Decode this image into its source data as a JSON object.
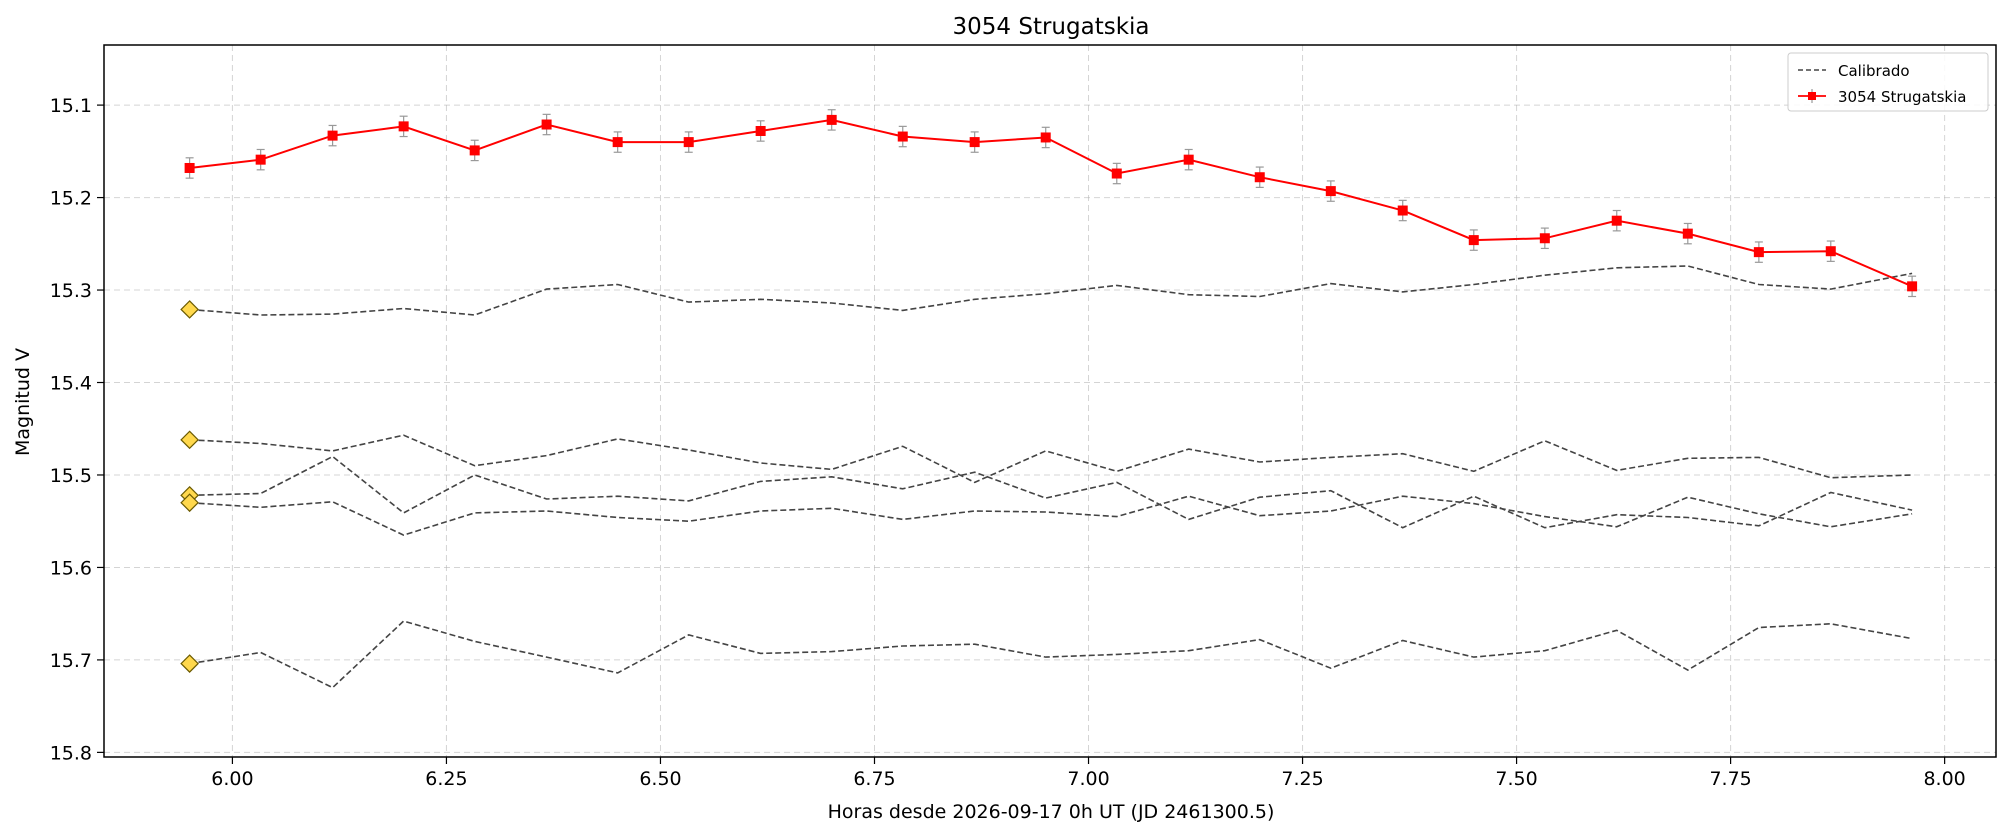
{
  "chart_data": {
    "type": "line",
    "title": "3054 Strugatskia",
    "xlabel": "Horas desde 2026-09-17 0h UT (JD 2461300.5)",
    "ylabel": "Magnitud V",
    "xlim": [
      5.85,
      8.06
    ],
    "ylim": [
      15.805,
      15.035
    ],
    "y_inverted": true,
    "grid": true,
    "legend_position": "top-right",
    "xticks": [
      "6.00",
      "6.25",
      "6.50",
      "6.75",
      "7.00",
      "7.25",
      "7.50",
      "7.75",
      "8.00"
    ],
    "xtick_values": [
      6.0,
      6.25,
      6.5,
      6.75,
      7.0,
      7.25,
      7.5,
      7.75,
      8.0
    ],
    "yticks": [
      "15.1",
      "15.2",
      "15.3",
      "15.4",
      "15.5",
      "15.6",
      "15.7",
      "15.8"
    ],
    "ytick_values": [
      15.1,
      15.2,
      15.3,
      15.4,
      15.5,
      15.6,
      15.7,
      15.8
    ],
    "legend": {
      "calibrado_label": "Calibrado",
      "target_label": "3054 Strugatskia"
    },
    "x": [
      5.95,
      6.033,
      6.117,
      6.2,
      6.283,
      6.367,
      6.45,
      6.533,
      6.617,
      6.7,
      6.783,
      6.867,
      6.95,
      7.033,
      7.117,
      7.2,
      7.283,
      7.367,
      7.45,
      7.533,
      7.617,
      7.7,
      7.783,
      7.867,
      7.962
    ],
    "target": {
      "name": "3054 Strugatskia",
      "color": "#ff0000",
      "values": [
        15.168,
        15.159,
        15.133,
        15.123,
        15.149,
        15.121,
        15.14,
        15.14,
        15.128,
        15.116,
        15.134,
        15.14,
        15.135,
        15.174,
        15.159,
        15.178,
        15.193,
        15.214,
        15.246,
        15.244,
        15.225,
        15.239,
        15.259,
        15.258,
        15.296
      ],
      "error": 0.011
    },
    "calibrated_color": "#444444",
    "reference_marker_color": "#ffd84d",
    "calibrated": [
      [
        15.321,
        15.327,
        15.326,
        15.32,
        15.327,
        15.299,
        15.294,
        15.313,
        15.31,
        15.314,
        15.322,
        15.31,
        15.304,
        15.295,
        15.305,
        15.307,
        15.293,
        15.302,
        15.294,
        15.284,
        15.276,
        15.274,
        15.294,
        15.299,
        15.282
      ],
      [
        15.462,
        15.466,
        15.474,
        15.457,
        15.49,
        15.479,
        15.461,
        15.473,
        15.487,
        15.494,
        15.469,
        15.508,
        15.474,
        15.496,
        15.472,
        15.486,
        15.481,
        15.477,
        15.496,
        15.463,
        15.495,
        15.482,
        15.481,
        15.503,
        15.5
      ],
      [
        15.522,
        15.52,
        15.48,
        15.541,
        15.5,
        15.526,
        15.523,
        15.528,
        15.507,
        15.502,
        15.515,
        15.497,
        15.525,
        15.508,
        15.548,
        15.524,
        15.517,
        15.557,
        15.523,
        15.557,
        15.543,
        15.546,
        15.555,
        15.519,
        15.538
      ],
      [
        15.53,
        15.535,
        15.529,
        15.565,
        15.541,
        15.539,
        15.546,
        15.55,
        15.539,
        15.536,
        15.548,
        15.539,
        15.54,
        15.545,
        15.523,
        15.544,
        15.539,
        15.523,
        15.531,
        15.545,
        15.556,
        15.524,
        15.542,
        15.556,
        15.542
      ],
      [
        15.704,
        15.692,
        15.73,
        15.658,
        15.68,
        15.697,
        15.714,
        15.673,
        15.693,
        15.691,
        15.685,
        15.683,
        15.697,
        15.694,
        15.69,
        15.678,
        15.709,
        15.679,
        15.697,
        15.69,
        15.668,
        15.711,
        15.665,
        15.661,
        15.677
      ]
    ]
  }
}
